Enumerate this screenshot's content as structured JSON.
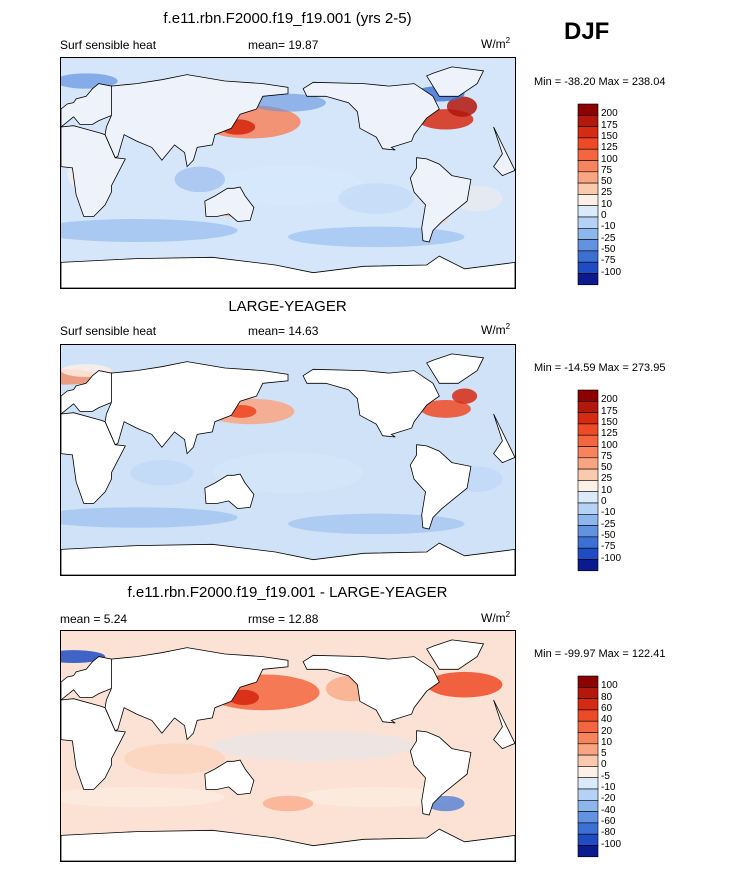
{
  "season": "DJF",
  "panels": [
    {
      "title": "f.e11.rbn.F2000.f19_f19.001 (yrs 2-5)",
      "left_label": "Surf sensible heat",
      "center_label": "mean=  19.87",
      "unit": "W/m",
      "unit_sup": "2",
      "minmax": "Min = -38.20 Max = 238.04",
      "levels": [
        "200",
        "175",
        "150",
        "125",
        "100",
        "75",
        "50",
        "25",
        "10",
        "0",
        "-10",
        "-25",
        "-50",
        "-75",
        "-100"
      ],
      "colors": [
        "#8b0000",
        "#b2180c",
        "#d62a13",
        "#ee4a26",
        "#f4663f",
        "#f7845d",
        "#f9a582",
        "#fbc9ad",
        "#fdf0e6",
        "#dbeafb",
        "#b5d2f5",
        "#8db6ec",
        "#6393e0",
        "#3c70d4",
        "#1f4cc2",
        "#0b1a8c"
      ],
      "ocean_color": "#d5e6fa",
      "land_color": "#eef3fb"
    },
    {
      "title": "LARGE-YEAGER",
      "left_label": "Surf sensible heat",
      "center_label": "mean=  14.63",
      "unit": "W/m",
      "unit_sup": "2",
      "minmax": "Min = -14.59 Max = 273.95",
      "levels": [
        "200",
        "175",
        "150",
        "125",
        "100",
        "75",
        "50",
        "25",
        "10",
        "0",
        "-10",
        "-25",
        "-50",
        "-75",
        "-100"
      ],
      "colors": [
        "#8b0000",
        "#b2180c",
        "#d62a13",
        "#ee4a26",
        "#f4663f",
        "#f7845d",
        "#f9a582",
        "#fbc9ad",
        "#fdf0e6",
        "#dbeafb",
        "#b5d2f5",
        "#8db6ec",
        "#6393e0",
        "#3c70d4",
        "#1f4cc2",
        "#0b1a8c"
      ],
      "ocean_color": "#cfe2f8",
      "land_color": "#ffffff"
    },
    {
      "title": "f.e11.rbn.F2000.f19_f19.001 - LARGE-YEAGER",
      "left_label": "mean =   5.24",
      "center_label": "rmse =  12.88",
      "unit": "W/m",
      "unit_sup": "2",
      "minmax": "Min = -99.97 Max = 122.41",
      "levels": [
        "100",
        "80",
        "60",
        "40",
        "20",
        "10",
        "5",
        "0",
        "-5",
        "-10",
        "-20",
        "-40",
        "-60",
        "-80",
        "-100"
      ],
      "colors": [
        "#8b0000",
        "#b2180c",
        "#d62a13",
        "#ee4a26",
        "#f4663f",
        "#f7845d",
        "#f9a582",
        "#fbc9ad",
        "#fdf0e6",
        "#dbeafb",
        "#b5d2f5",
        "#8db6ec",
        "#6393e0",
        "#3c70d4",
        "#1f4cc2",
        "#0b1a8c"
      ],
      "ocean_color": "#fbe2d4",
      "land_color": "#ffffff"
    }
  ],
  "chart_data": [
    {
      "type": "heatmap",
      "title": "f.e11.rbn.F2000.f19_f19.001 (yrs 2-5)",
      "variable": "Surf sensible heat",
      "mean": 19.87,
      "min": -38.2,
      "max": 238.04,
      "units": "W/m2",
      "contour_levels": [
        -100,
        -75,
        -50,
        -25,
        -10,
        0,
        10,
        25,
        50,
        75,
        100,
        125,
        150,
        175,
        200
      ]
    },
    {
      "type": "heatmap",
      "title": "LARGE-YEAGER",
      "variable": "Surf sensible heat",
      "mean": 14.63,
      "min": -14.59,
      "max": 273.95,
      "units": "W/m2",
      "contour_levels": [
        -100,
        -75,
        -50,
        -25,
        -10,
        0,
        10,
        25,
        50,
        75,
        100,
        125,
        150,
        175,
        200
      ]
    },
    {
      "type": "heatmap",
      "title": "f.e11.rbn.F2000.f19_f19.001 - LARGE-YEAGER",
      "mean": 5.24,
      "rmse": 12.88,
      "min": -99.97,
      "max": 122.41,
      "units": "W/m2",
      "contour_levels": [
        -100,
        -80,
        -60,
        -40,
        -20,
        -10,
        -5,
        0,
        5,
        10,
        20,
        40,
        60,
        80,
        100
      ]
    }
  ]
}
